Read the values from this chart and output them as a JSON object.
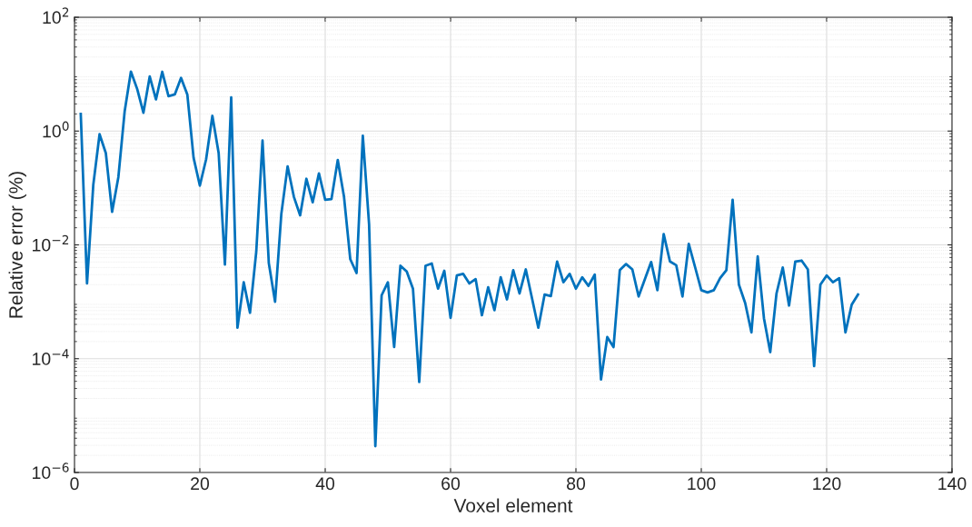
{
  "chart_data": {
    "type": "line",
    "xlabel": "Voxel element",
    "ylabel": "Relative error (%)",
    "log": "y",
    "grid": true,
    "marker": "none",
    "line_style": "solid",
    "xlim": [
      0,
      140
    ],
    "xticks": [
      0,
      20,
      40,
      60,
      80,
      100,
      120,
      140
    ],
    "ylim": [
      1e-06,
      100
    ],
    "yticks": [
      {
        "value": 1e-06,
        "label": "10$^{−6}$"
      },
      {
        "value": 0.0001,
        "label": "10$^{−4}$"
      },
      {
        "value": 0.01,
        "label": "10$^{−2}$"
      },
      {
        "value": 1,
        "label": "10$^{0}$"
      },
      {
        "value": 100,
        "label": "10$^{2}$"
      }
    ],
    "x": [
      1,
      2,
      3,
      4,
      5,
      6,
      7,
      8,
      9,
      10,
      11,
      12,
      13,
      14,
      15,
      16,
      17,
      18,
      19,
      20,
      21,
      22,
      23,
      24,
      25,
      26,
      27,
      28,
      29,
      30,
      31,
      32,
      33,
      34,
      35,
      36,
      37,
      38,
      39,
      40,
      41,
      42,
      43,
      44,
      45,
      46,
      47,
      48,
      49,
      50,
      51,
      52,
      53,
      54,
      55,
      56,
      57,
      58,
      59,
      60,
      61,
      62,
      63,
      64,
      65,
      66,
      67,
      68,
      69,
      70,
      71,
      72,
      73,
      74,
      75,
      76,
      77,
      78,
      79,
      80,
      81,
      82,
      83,
      84,
      85,
      86,
      87,
      88,
      89,
      90,
      91,
      92,
      93,
      94,
      95,
      96,
      97,
      98,
      99,
      100,
      101,
      102,
      103,
      104,
      105,
      106,
      107,
      108,
      109,
      110,
      111,
      112,
      113,
      114,
      115,
      116,
      117,
      118,
      119,
      120,
      121,
      122,
      123,
      124,
      125
    ],
    "series": [
      {
        "color": "#0072bd",
        "values": [
          2.0,
          0.0021,
          0.114,
          0.88,
          0.41,
          0.038,
          0.155,
          2.2,
          11.1,
          5.5,
          2.1,
          9.1,
          3.6,
          11,
          4.1,
          4.4,
          8.6,
          4.4,
          0.34,
          0.11,
          0.32,
          1.85,
          0.41,
          0.0045,
          3.9,
          0.00035,
          0.0022,
          0.00064,
          0.0076,
          0.68,
          0.0048,
          0.001,
          0.035,
          0.24,
          0.07,
          0.033,
          0.145,
          0.056,
          0.18,
          0.062,
          0.064,
          0.31,
          0.07,
          0.0056,
          0.0032,
          0.83,
          0.023,
          2.9e-06,
          0.0013,
          0.0022,
          0.00016,
          0.0043,
          0.0034,
          0.0017,
          3.9e-05,
          0.0043,
          0.0047,
          0.0017,
          0.0035,
          0.00052,
          0.0029,
          0.0031,
          0.0021,
          0.0025,
          0.00058,
          0.0018,
          0.00071,
          0.0027,
          0.0011,
          0.0036,
          0.0014,
          0.0037,
          0.00114,
          0.00035,
          0.00134,
          0.00126,
          0.0051,
          0.0022,
          0.0031,
          0.0017,
          0.0027,
          0.0019,
          0.003,
          4.3e-05,
          0.00024,
          0.00016,
          0.0036,
          0.0046,
          0.0037,
          0.00124,
          0.0025,
          0.005,
          0.0016,
          0.0155,
          0.0051,
          0.0044,
          0.00124,
          0.0104,
          0.0041,
          0.0016,
          0.00146,
          0.0016,
          0.0026,
          0.0036,
          0.062,
          0.002,
          0.00095,
          0.00029,
          0.0063,
          0.00051,
          0.00013,
          0.0014,
          0.004,
          0.00086,
          0.0051,
          0.0053,
          0.0037,
          7.4e-05,
          0.002,
          0.0029,
          0.0022,
          0.0026,
          0.00029,
          0.00089,
          0.00134
        ]
      }
    ]
  }
}
